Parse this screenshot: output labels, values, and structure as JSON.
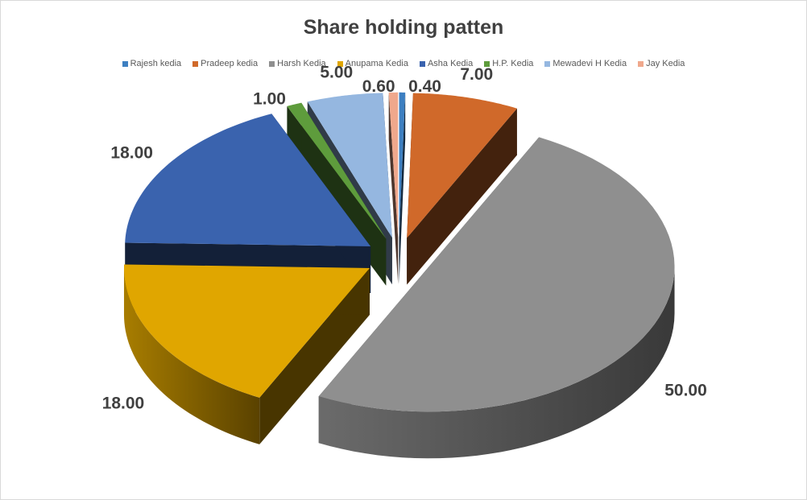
{
  "chart_data": {
    "type": "pie",
    "style": "3d-exploded",
    "title": "Share holding patten",
    "legend_position": "top",
    "categories": [
      "Rajesh kedia",
      "Pradeep kedia",
      "Harsh Kedia",
      "Anupama Kedia",
      "Asha Kedia",
      "H.P. Kedia",
      "Mewadevi H Kedia",
      "Jay Kedia"
    ],
    "values": [
      0.4,
      7.0,
      50.0,
      18.0,
      18.0,
      1.0,
      5.0,
      0.6
    ],
    "data_labels": [
      "0.40",
      "7.00",
      "50.00",
      "18.00",
      "18.00",
      "1.00",
      "5.00",
      "0.60"
    ],
    "colors": [
      "#3d7fc1",
      "#d0692a",
      "#8f8f8f",
      "#e0a600",
      "#3a63ae",
      "#5e9c3c",
      "#95b7e0",
      "#f0a88c"
    ]
  }
}
